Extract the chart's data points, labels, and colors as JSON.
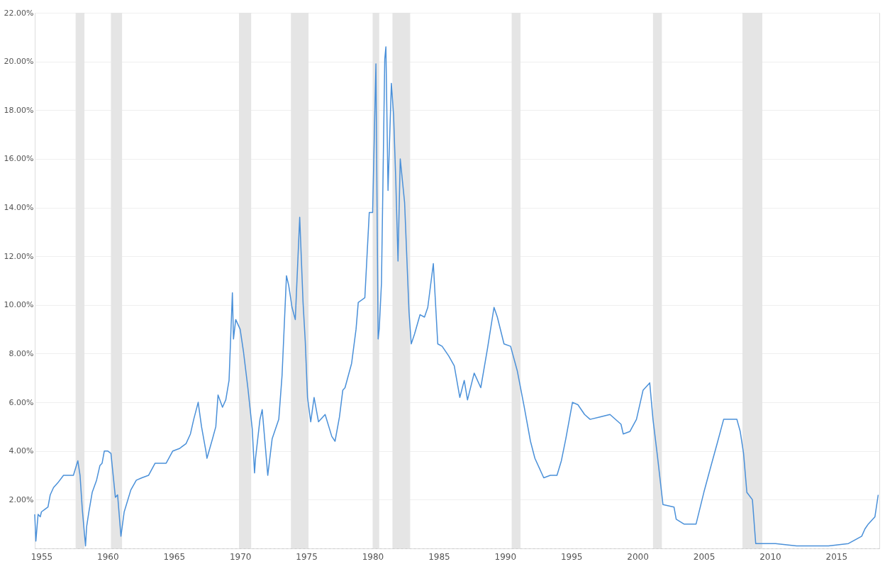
{
  "chart_data": {
    "type": "line",
    "grid": "y",
    "xlim": [
      "1954-07",
      "2018-04"
    ],
    "xticks": [
      "1955",
      "1960",
      "1965",
      "1970",
      "1975",
      "1980",
      "1985",
      "1990",
      "1995",
      "2000",
      "2005",
      "2010",
      "2015"
    ],
    "ylim": [
      0,
      22
    ],
    "yticks": [
      {
        "value": 2,
        "label": "2.00%"
      },
      {
        "value": 4,
        "label": "4.00%"
      },
      {
        "value": 6,
        "label": "6.00%"
      },
      {
        "value": 8,
        "label": "8.00%"
      },
      {
        "value": 10,
        "label": "10.00%"
      },
      {
        "value": 12,
        "label": "12.00%"
      },
      {
        "value": 14,
        "label": "14.00%"
      },
      {
        "value": 16,
        "label": "16.00%"
      },
      {
        "value": 18,
        "label": "18.00%"
      },
      {
        "value": 20,
        "label": "20.00%"
      },
      {
        "value": 22,
        "label": "22.00%"
      }
    ],
    "bands": [
      {
        "axis": "x",
        "from": "1957-08",
        "to": "1958-04",
        "color": "#e5e5e5"
      },
      {
        "axis": "x",
        "from": "1960-04",
        "to": "1961-02",
        "color": "#e5e5e5"
      },
      {
        "axis": "x",
        "from": "1969-12",
        "to": "1970-11",
        "color": "#e5e5e5"
      },
      {
        "axis": "x",
        "from": "1973-11",
        "to": "1975-03",
        "color": "#e5e5e5"
      },
      {
        "axis": "x",
        "from": "1980-01",
        "to": "1980-07",
        "color": "#e5e5e5"
      },
      {
        "axis": "x",
        "from": "1981-07",
        "to": "1982-11",
        "color": "#e5e5e5"
      },
      {
        "axis": "x",
        "from": "1990-07",
        "to": "1991-03",
        "color": "#e5e5e5"
      },
      {
        "axis": "x",
        "from": "2001-03",
        "to": "2001-11",
        "color": "#e5e5e5"
      },
      {
        "axis": "x",
        "from": "2007-12",
        "to": "2009-06",
        "color": "#e5e5e5"
      }
    ],
    "x": [
      "1954-07",
      "1954-08",
      "1954-10",
      "1954-12",
      "1955-01",
      "1955-04",
      "1955-07",
      "1955-09",
      "1955-12",
      "1956-04",
      "1956-09",
      "1957-06",
      "1957-10",
      "1957-12",
      "1958-02",
      "1958-05",
      "1958-06",
      "1958-08",
      "1958-11",
      "1959-03",
      "1959-06",
      "1959-08",
      "1959-10",
      "1960-01",
      "1960-04",
      "1960-06",
      "1960-08",
      "1960-10",
      "1961-01",
      "1961-04",
      "1961-06",
      "1961-10",
      "1962-03",
      "1962-08",
      "1963-02",
      "1963-08",
      "1964-06",
      "1964-12",
      "1965-06",
      "1965-12",
      "1966-04",
      "1966-07",
      "1966-11",
      "1967-02",
      "1967-06",
      "1967-07",
      "1967-12",
      "1968-03",
      "1968-05",
      "1968-09",
      "1968-12",
      "1969-03",
      "1969-06",
      "1969-07",
      "1969-09",
      "1970-01",
      "1970-04",
      "1970-08",
      "1970-12",
      "1971-02",
      "1971-03",
      "1971-07",
      "1971-09",
      "1971-12",
      "1972-02",
      "1972-06",
      "1972-12",
      "1973-03",
      "1973-07",
      "1973-09",
      "1973-12",
      "1974-03",
      "1974-07",
      "1974-10",
      "1974-12",
      "1975-02",
      "1975-05",
      "1975-08",
      "1975-12",
      "1976-06",
      "1976-12",
      "1977-03",
      "1977-07",
      "1977-10",
      "1977-12",
      "1978-06",
      "1978-10",
      "1978-12",
      "1979-06",
      "1979-10",
      "1980-01",
      "1980-04",
      "1980-06",
      "1980-07",
      "1980-09",
      "1980-12",
      "1981-01",
      "1981-03",
      "1981-06",
      "1981-08",
      "1981-10",
      "1981-12",
      "1982-02",
      "1982-06",
      "1982-10",
      "1982-12",
      "1983-03",
      "1983-08",
      "1983-12",
      "1984-03",
      "1984-08",
      "1984-12",
      "1985-04",
      "1985-10",
      "1986-03",
      "1986-08",
      "1986-12",
      "1987-03",
      "1987-09",
      "1988-03",
      "1988-09",
      "1989-03",
      "1989-06",
      "1989-12",
      "1990-06",
      "1990-12",
      "1991-06",
      "1991-12",
      "1992-04",
      "1992-12",
      "1993-06",
      "1993-12",
      "1994-04",
      "1994-08",
      "1995-02",
      "1995-07",
      "1996-01",
      "1996-06",
      "1997-03",
      "1997-12",
      "1998-10",
      "1998-12",
      "1999-06",
      "1999-12",
      "2000-06",
      "2000-12",
      "2001-03",
      "2001-07",
      "2001-12",
      "2002-10",
      "2002-12",
      "2003-07",
      "2004-06",
      "2005-01",
      "2005-07",
      "2006-01",
      "2006-07",
      "2007-07",
      "2007-10",
      "2008-01",
      "2008-04",
      "2008-09",
      "2008-12",
      "2010-06",
      "2012-01",
      "2014-06",
      "2015-12",
      "2016-12",
      "2017-03",
      "2017-06",
      "2017-12",
      "2018-03"
    ],
    "series": [
      {
        "color": "#4a90d9",
        "values": [
          1.4,
          0.3,
          1.4,
          1.3,
          1.5,
          1.6,
          1.7,
          2.2,
          2.5,
          2.7,
          3.0,
          3.0,
          3.6,
          3.0,
          1.6,
          0.1,
          0.9,
          1.5,
          2.3,
          2.8,
          3.4,
          3.5,
          4.0,
          4.0,
          3.9,
          3.0,
          2.1,
          2.2,
          0.5,
          1.5,
          1.8,
          2.4,
          2.8,
          2.9,
          3.0,
          3.5,
          3.5,
          4.0,
          4.1,
          4.3,
          4.7,
          5.3,
          6.0,
          5.0,
          4.0,
          3.7,
          4.5,
          5.0,
          6.3,
          5.8,
          6.1,
          6.9,
          10.5,
          8.6,
          9.4,
          9.0,
          8.1,
          6.6,
          4.9,
          3.1,
          3.7,
          5.3,
          5.7,
          4.1,
          3.0,
          4.5,
          5.3,
          7.1,
          11.2,
          10.8,
          9.9,
          9.4,
          13.6,
          10.1,
          8.5,
          6.2,
          5.2,
          6.2,
          5.2,
          5.5,
          4.6,
          4.4,
          5.4,
          6.5,
          6.6,
          7.6,
          9.0,
          10.1,
          10.3,
          13.8,
          13.8,
          19.9,
          8.6,
          9.0,
          10.9,
          20.1,
          20.6,
          14.7,
          19.1,
          17.8,
          15.1,
          11.8,
          16.0,
          14.2,
          9.7,
          8.4,
          8.8,
          9.6,
          9.5,
          9.9,
          11.7,
          8.4,
          8.3,
          7.9,
          7.5,
          6.2,
          6.9,
          6.1,
          7.2,
          6.6,
          8.2,
          9.9,
          9.5,
          8.4,
          8.3,
          7.3,
          5.9,
          4.4,
          3.7,
          2.9,
          3.0,
          3.0,
          3.6,
          4.5,
          6.0,
          5.9,
          5.5,
          5.3,
          5.4,
          5.5,
          5.1,
          4.7,
          4.8,
          5.3,
          6.5,
          6.8,
          5.3,
          3.8,
          1.8,
          1.7,
          1.2,
          1.0,
          1.0,
          2.3,
          3.3,
          4.3,
          5.3,
          5.3,
          4.8,
          3.9,
          2.3,
          2.0,
          0.2,
          0.2,
          0.1,
          0.1,
          0.2,
          0.5,
          0.8,
          1.0,
          1.3,
          2.2
        ]
      }
    ]
  }
}
